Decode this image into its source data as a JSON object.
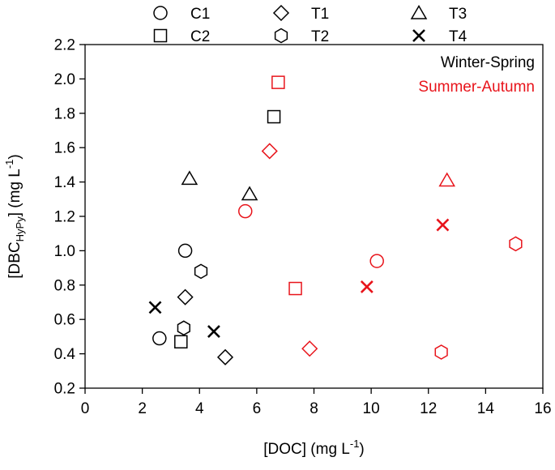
{
  "colors": {
    "winter": "#000000",
    "summer": "#e8141b"
  },
  "chart_data": {
    "type": "scatter",
    "xlabel": {
      "prefix": "[DOC] (mg L",
      "sup": "-1",
      "suffix": ")"
    },
    "ylabel": {
      "prefix": "[DBC",
      "sub": "HyPy",
      "mid": "] (mg L",
      "sup": "-1",
      "suffix": ")"
    },
    "xlim": [
      0,
      16
    ],
    "ylim": [
      0.2,
      2.2
    ],
    "xticks": [
      0,
      2,
      4,
      6,
      8,
      10,
      12,
      14,
      16
    ],
    "yticks": [
      0.2,
      0.4,
      0.6,
      0.8,
      1.0,
      1.2,
      1.4,
      1.6,
      1.8,
      2.0,
      2.2
    ],
    "grid": false,
    "legend": {
      "placement": "top",
      "entries": [
        {
          "name": "C1",
          "marker": "circle"
        },
        {
          "name": "T1",
          "marker": "diamond"
        },
        {
          "name": "T3",
          "marker": "triangle"
        },
        {
          "name": "C2",
          "marker": "square"
        },
        {
          "name": "T2",
          "marker": "hexagon"
        },
        {
          "name": "T4",
          "marker": "x"
        }
      ]
    },
    "season_labels": [
      {
        "text": "Winter-Spring",
        "color": "#000000"
      },
      {
        "text": "Summer-Autumn",
        "color": "#e8141b"
      }
    ],
    "series": [
      {
        "name": "C1",
        "marker": "circle",
        "winter": [
          [
            2.6,
            0.49
          ],
          [
            3.5,
            1.0
          ]
        ],
        "summer": [
          [
            5.6,
            1.23
          ],
          [
            10.2,
            0.94
          ]
        ]
      },
      {
        "name": "C2",
        "marker": "square",
        "winter": [
          [
            3.35,
            0.47
          ],
          [
            6.6,
            1.78
          ]
        ],
        "summer": [
          [
            6.75,
            1.98
          ],
          [
            7.35,
            0.78
          ]
        ]
      },
      {
        "name": "T1",
        "marker": "diamond",
        "winter": [
          [
            3.5,
            0.73
          ],
          [
            4.9,
            0.38
          ]
        ],
        "summer": [
          [
            6.45,
            1.58
          ],
          [
            7.85,
            0.43
          ]
        ]
      },
      {
        "name": "T2",
        "marker": "hexagon",
        "winter": [
          [
            3.45,
            0.55
          ],
          [
            4.05,
            0.88
          ]
        ],
        "summer": [
          [
            12.45,
            0.41
          ],
          [
            15.05,
            1.04
          ]
        ]
      },
      {
        "name": "T3",
        "marker": "triangle",
        "winter": [
          [
            3.65,
            1.42
          ],
          [
            5.75,
            1.33
          ]
        ],
        "summer": [
          [
            12.65,
            1.41
          ]
        ]
      },
      {
        "name": "T4",
        "marker": "x",
        "winter": [
          [
            2.45,
            0.67
          ],
          [
            4.5,
            0.53
          ]
        ],
        "summer": [
          [
            9.85,
            0.79
          ],
          [
            12.5,
            1.15
          ]
        ]
      }
    ]
  }
}
